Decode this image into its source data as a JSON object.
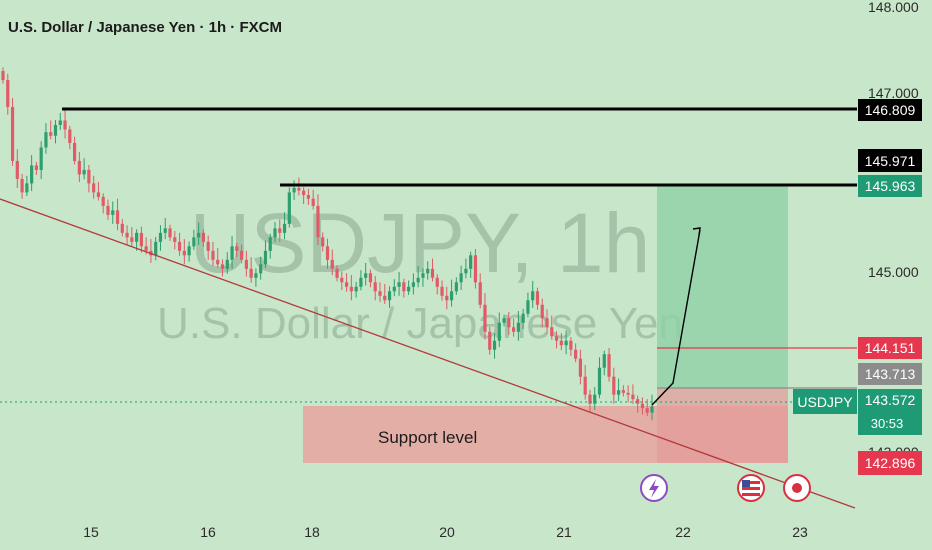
{
  "header": {
    "title": "U.S. Dollar / Japanese Yen · 1h · FXCM"
  },
  "watermark": {
    "symbol": "USDJPY, 1h",
    "name": "U.S. Dollar / Japanese Yen"
  },
  "annotations": {
    "support_label": "Support level"
  },
  "colors": {
    "background": "#c8e6c9",
    "up": "#2e9e6f",
    "down": "#e05a67",
    "support_zone": "#e8a3a0",
    "target_zone": "#8fd1a8",
    "trendline": "#b23a3a",
    "black_level": "#000000",
    "price_tag_green": "#1e9b74",
    "price_tag_red": "#e5384f",
    "price_tag_gray": "#8c8c8c"
  },
  "icons": [
    "lightning-event-icon",
    "us-flag-event-icon",
    "japan-flag-event-icon"
  ],
  "price_tags": {
    "resistance_high": "146.809",
    "black_tag": "145.971",
    "target": "145.963",
    "stop_entry": "144.151",
    "entry": "143.713",
    "current": "143.572",
    "countdown": "30:53",
    "support_low": "142.896",
    "symbol": "USDJPY"
  },
  "chart_data": {
    "type": "candlestick",
    "symbol": "USDJPY",
    "timeframe": "1h",
    "x_ticks": [
      "15",
      "16",
      "18",
      "20",
      "21",
      "22",
      "23"
    ],
    "y_ticks": [
      "148.000",
      "147.000",
      "145.000",
      "143.000"
    ],
    "ylim": [
      142.3,
      148.0
    ],
    "grid": false,
    "horizontal_levels": [
      146.809,
      145.971
    ],
    "support_zone": {
      "from": 142.896,
      "to": 143.572
    },
    "target_zone": {
      "from": 143.713,
      "to": 145.963
    },
    "entry": 143.713,
    "stop": 144.151,
    "current_price": 143.572,
    "candle_closes": [
      147.2,
      146.9,
      146.3,
      146.1,
      145.95,
      146.05,
      146.25,
      146.2,
      146.45,
      146.62,
      146.58,
      146.7,
      146.75,
      146.65,
      146.5,
      146.3,
      146.15,
      146.2,
      146.05,
      145.95,
      145.9,
      145.8,
      145.7,
      145.75,
      145.6,
      145.5,
      145.45,
      145.4,
      145.5,
      145.35,
      145.3,
      145.25,
      145.4,
      145.5,
      145.55,
      145.45,
      145.4,
      145.3,
      145.25,
      145.35,
      145.45,
      145.5,
      145.4,
      145.3,
      145.2,
      145.15,
      145.1,
      145.2,
      145.35,
      145.3,
      145.2,
      145.1,
      145.0,
      145.05,
      145.15,
      145.3,
      145.45,
      145.55,
      145.5,
      145.6,
      145.95,
      146.0,
      145.97,
      145.92,
      145.88,
      145.8,
      145.45,
      145.35,
      145.2,
      145.1,
      145.0,
      144.95,
      144.9,
      144.85,
      144.9,
      145.0,
      145.05,
      144.95,
      144.85,
      144.8,
      144.75,
      144.85,
      144.9,
      144.95,
      144.85,
      144.9,
      144.95,
      145.0,
      145.05,
      145.1,
      145.0,
      144.9,
      144.8,
      144.75,
      144.85,
      144.95,
      145.05,
      145.1,
      145.25,
      144.95,
      144.7,
      144.4,
      144.2,
      144.3,
      144.5,
      144.55,
      144.45,
      144.4,
      144.5,
      144.6,
      144.75,
      144.85,
      144.7,
      144.55,
      144.45,
      144.35,
      144.3,
      144.25,
      144.3,
      144.2,
      144.1,
      143.9,
      143.7,
      143.6,
      143.7,
      144.0,
      144.15,
      143.9,
      143.7,
      143.75,
      143.72,
      143.7,
      143.65,
      143.6,
      143.55,
      143.5,
      143.57
    ]
  }
}
